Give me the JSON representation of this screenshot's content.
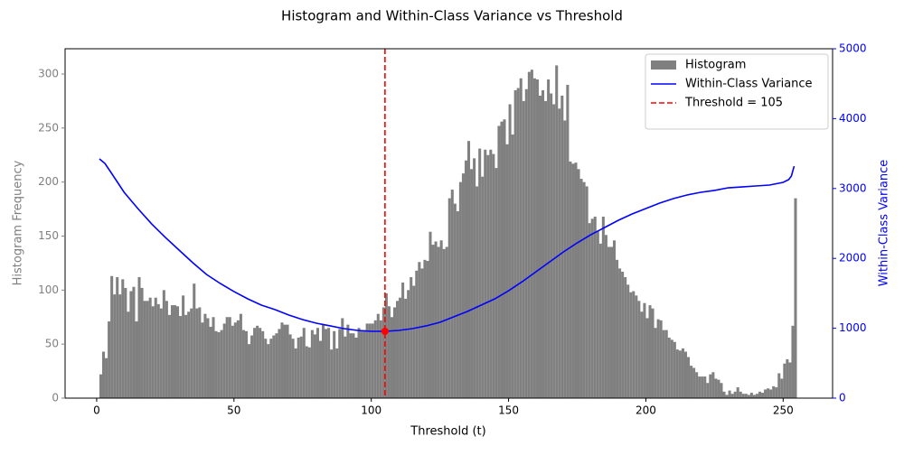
{
  "chart_data": {
    "type": "histogram",
    "title": "Histogram and Within-Class Variance vs Threshold",
    "xlabel": "Threshold (t)",
    "ylabel": "Histogram Frequency",
    "y2label": "Within-Class Variance",
    "xlim": [
      -11.5,
      268
    ],
    "ylim": [
      0,
      323.4
    ],
    "y2lim": [
      0,
      5000
    ],
    "xticks": [
      0,
      50,
      100,
      150,
      200,
      250
    ],
    "yticks": [
      0,
      50,
      100,
      150,
      200,
      250,
      300
    ],
    "y2ticks": [
      0,
      1000,
      2000,
      3000,
      4000,
      5000
    ],
    "ytick_color": "gray",
    "y2tick_color": "blue",
    "legend": "upper right",
    "series": [
      {
        "name": "Histogram",
        "type": "bar",
        "color": "gray",
        "bins": [
          0,
          1,
          2,
          3,
          4,
          5,
          6,
          7,
          8,
          9,
          10,
          11,
          12,
          13,
          14,
          15,
          16,
          17,
          18,
          19,
          20,
          21,
          22,
          23,
          24,
          25,
          26,
          27,
          28,
          29,
          30,
          31,
          32,
          33,
          34,
          35,
          36,
          37,
          38,
          39,
          40,
          41,
          42,
          43,
          44,
          45,
          46,
          47,
          48,
          49,
          50,
          51,
          52,
          53,
          54,
          55,
          56,
          57,
          58,
          59,
          60,
          61,
          62,
          63,
          64,
          65,
          66,
          67,
          68,
          69,
          70,
          71,
          72,
          73,
          74,
          75,
          76,
          77,
          78,
          79,
          80,
          81,
          82,
          83,
          84,
          85,
          86,
          87,
          88,
          89,
          90,
          91,
          92,
          93,
          94,
          95,
          96,
          97,
          98,
          99,
          100,
          101,
          102,
          103,
          104,
          105,
          106,
          107,
          108,
          109,
          110,
          111,
          112,
          113,
          114,
          115,
          116,
          117,
          118,
          119,
          120,
          121,
          122,
          123,
          124,
          125,
          126,
          127,
          128,
          129,
          130,
          131,
          132,
          133,
          134,
          135,
          136,
          137,
          138,
          139,
          140,
          141,
          142,
          143,
          144,
          145,
          146,
          147,
          148,
          149,
          150,
          151,
          152,
          153,
          154,
          155,
          156,
          157,
          158,
          159,
          160,
          161,
          162,
          163,
          164,
          165,
          166,
          167,
          168,
          169,
          170,
          171,
          172,
          173,
          174,
          175,
          176,
          177,
          178,
          179,
          180,
          181,
          182,
          183,
          184,
          185,
          186,
          187,
          188,
          189,
          190,
          191,
          192,
          193,
          194,
          195,
          196,
          197,
          198,
          199,
          200,
          201,
          202,
          203,
          204,
          205,
          206,
          207,
          208,
          209,
          210,
          211,
          212,
          213,
          214,
          215,
          216,
          217,
          218,
          219,
          220,
          221,
          222,
          223,
          224,
          225,
          226,
          227,
          228,
          229,
          230,
          231,
          232,
          233,
          234,
          235,
          236,
          237,
          238,
          239,
          240,
          241,
          242,
          243,
          244,
          245,
          246,
          247,
          248,
          249,
          250,
          251,
          252,
          253,
          254,
          255,
          256
        ],
        "values": [
          0,
          22,
          43,
          37,
          71,
          113,
          96,
          112,
          96,
          110,
          102,
          80,
          99,
          103,
          71,
          112,
          102,
          90,
          90,
          93,
          85,
          93,
          87,
          83,
          100,
          90,
          77,
          86,
          86,
          85,
          76,
          95,
          77,
          80,
          83,
          106,
          83,
          84,
          70,
          78,
          74,
          66,
          75,
          62,
          61,
          63,
          69,
          75,
          75,
          67,
          70,
          72,
          78,
          63,
          62,
          50,
          58,
          65,
          67,
          65,
          62,
          55,
          50,
          55,
          58,
          60,
          64,
          70,
          68,
          68,
          59,
          55,
          46,
          56,
          57,
          65,
          48,
          47,
          63,
          59,
          65,
          53,
          68,
          64,
          65,
          45,
          62,
          46,
          64,
          74,
          57,
          68,
          60,
          60,
          56,
          65,
          63,
          63,
          69,
          69,
          69,
          72,
          78,
          72,
          84,
          97,
          85,
          75,
          84,
          90,
          93,
          107,
          92,
          100,
          112,
          104,
          118,
          126,
          120,
          128,
          127,
          154,
          142,
          145,
          140,
          146,
          138,
          140,
          185,
          193,
          180,
          173,
          200,
          208,
          220,
          238,
          212,
          222,
          196,
          231,
          205,
          230,
          225,
          230,
          226,
          213,
          252,
          256,
          258,
          235,
          272,
          244,
          285,
          287,
          296,
          275,
          286,
          302,
          304,
          296,
          295,
          280,
          285,
          275,
          295,
          282,
          272,
          308,
          268,
          280,
          257,
          290,
          219,
          217,
          218,
          212,
          203,
          200,
          196,
          162,
          166,
          168,
          155,
          143,
          168,
          151,
          140,
          140,
          146,
          128,
          120,
          117,
          112,
          105,
          98,
          99,
          95,
          90,
          80,
          88,
          74,
          86,
          83,
          65,
          73,
          72,
          63,
          63,
          56,
          54,
          52,
          45,
          44,
          46,
          43,
          38,
          30,
          28,
          24,
          20,
          20,
          20,
          14,
          22,
          24,
          18,
          17,
          14,
          6,
          3,
          7,
          4,
          6,
          10,
          6,
          4,
          4,
          3,
          5,
          3,
          4,
          6,
          5,
          8,
          9,
          8,
          11,
          10,
          23,
          18,
          32,
          36,
          33,
          67,
          185,
          0
        ]
      },
      {
        "name": "Within-Class Variance",
        "type": "line",
        "color": "blue",
        "axis": "y2",
        "x": [
          1,
          3,
          5,
          10,
          15,
          20,
          25,
          30,
          35,
          40,
          45,
          50,
          55,
          60,
          65,
          70,
          75,
          80,
          85,
          90,
          95,
          100,
          105,
          110,
          115,
          120,
          125,
          130,
          135,
          140,
          145,
          150,
          155,
          160,
          165,
          170,
          175,
          180,
          185,
          190,
          195,
          200,
          205,
          210,
          215,
          220,
          225,
          230,
          235,
          240,
          245,
          250,
          252,
          253,
          254
        ],
        "values": [
          3424,
          3359,
          3243,
          2946,
          2713,
          2494,
          2300,
          2119,
          1938,
          1770,
          1641,
          1525,
          1421,
          1331,
          1266,
          1189,
          1124,
          1072,
          1034,
          995,
          969,
          956,
          956,
          969,
          995,
          1034,
          1085,
          1163,
          1240,
          1331,
          1421,
          1537,
          1667,
          1809,
          1951,
          2093,
          2222,
          2339,
          2442,
          2545,
          2636,
          2713,
          2791,
          2855,
          2907,
          2946,
          2972,
          3010,
          3023,
          3036,
          3049,
          3088,
          3127,
          3178,
          3320
        ]
      },
      {
        "name": "Threshold = 105",
        "type": "vline",
        "color": "red",
        "x": 105,
        "marker_value": 956
      }
    ]
  }
}
